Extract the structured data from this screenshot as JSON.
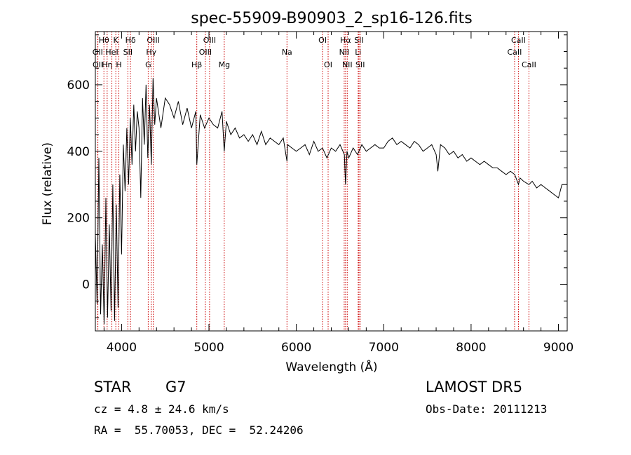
{
  "chart_data": {
    "type": "line",
    "title": "spec-55909-B90903_2_sp16-126.fits",
    "xlabel": "Wavelength (Å)",
    "ylabel": "Flux (relative)",
    "xlim": [
      3700,
      9100
    ],
    "ylim": [
      -140,
      760
    ],
    "x_ticks": [
      4000,
      5000,
      6000,
      7000,
      8000,
      9000
    ],
    "y_ticks": [
      0,
      200,
      400,
      600
    ],
    "grid": false,
    "line_color": "#000000",
    "marker_color": "#cc0000",
    "series": [
      {
        "x": [
          3700,
          3720,
          3740,
          3760,
          3780,
          3800,
          3820,
          3840,
          3860,
          3880,
          3900,
          3920,
          3940,
          3960,
          3980,
          4000,
          4020,
          4040,
          4060,
          4080,
          4100,
          4120,
          4140,
          4160,
          4180,
          4200,
          4220,
          4240,
          4260,
          4280,
          4300,
          4320,
          4340,
          4360,
          4380,
          4400,
          4450,
          4500,
          4550,
          4600,
          4650,
          4700,
          4750,
          4800,
          4850,
          4861,
          4900,
          4950,
          5000,
          5050,
          5100,
          5150,
          5175,
          5200,
          5250,
          5300,
          5350,
          5400,
          5450,
          5500,
          5550,
          5600,
          5650,
          5700,
          5750,
          5800,
          5850,
          5893,
          5900,
          5950,
          6000,
          6050,
          6100,
          6150,
          6200,
          6250,
          6300,
          6350,
          6400,
          6450,
          6500,
          6550,
          6563,
          6580,
          6600,
          6650,
          6700,
          6750,
          6800,
          6850,
          6900,
          6950,
          7000,
          7050,
          7100,
          7150,
          7200,
          7250,
          7300,
          7350,
          7400,
          7450,
          7500,
          7550,
          7600,
          7620,
          7650,
          7700,
          7750,
          7800,
          7850,
          7900,
          7950,
          8000,
          8050,
          8100,
          8150,
          8200,
          8250,
          8300,
          8350,
          8400,
          8450,
          8500,
          8542,
          8560,
          8600,
          8662,
          8700,
          8750,
          8800,
          8850,
          8900,
          8950,
          9000,
          9020,
          9040,
          9060
        ],
        "y": [
          150,
          -60,
          380,
          -90,
          120,
          -120,
          260,
          -100,
          180,
          -80,
          300,
          -110,
          240,
          -70,
          330,
          90,
          420,
          280,
          470,
          300,
          500,
          360,
          540,
          400,
          520,
          470,
          260,
          560,
          420,
          600,
          380,
          540,
          360,
          620,
          480,
          560,
          470,
          560,
          540,
          500,
          550,
          480,
          530,
          470,
          520,
          360,
          510,
          470,
          500,
          480,
          470,
          520,
          400,
          490,
          450,
          470,
          440,
          450,
          430,
          450,
          420,
          460,
          420,
          440,
          430,
          420,
          440,
          370,
          420,
          410,
          400,
          410,
          420,
          390,
          430,
          400,
          410,
          380,
          410,
          400,
          420,
          390,
          300,
          400,
          380,
          410,
          390,
          420,
          400,
          410,
          420,
          410,
          410,
          430,
          440,
          420,
          430,
          420,
          410,
          430,
          420,
          400,
          410,
          420,
          390,
          340,
          420,
          410,
          390,
          400,
          380,
          390,
          370,
          380,
          370,
          360,
          370,
          360,
          350,
          350,
          340,
          330,
          340,
          330,
          300,
          320,
          310,
          300,
          310,
          290,
          300,
          290,
          280,
          270,
          260,
          280,
          300,
          300
        ]
      }
    ],
    "lines": [
      {
        "label": "Hθ",
        "x": 3798,
        "row": 0
      },
      {
        "label": "OII",
        "x": 3727,
        "row": 1
      },
      {
        "label": "OII",
        "x": 3729,
        "row": 2
      },
      {
        "label": "Hη",
        "x": 3835,
        "row": 2
      },
      {
        "label": "K",
        "x": 3934,
        "row": 0
      },
      {
        "label": "HeI",
        "x": 3889,
        "row": 1
      },
      {
        "label": "H",
        "x": 3969,
        "row": 2
      },
      {
        "label": "Hδ",
        "x": 4102,
        "row": 0
      },
      {
        "label": "SII",
        "x": 4072,
        "row": 1
      },
      {
        "label": "OIII",
        "x": 4363,
        "row": 0
      },
      {
        "label": "Hγ",
        "x": 4340,
        "row": 1
      },
      {
        "label": "G",
        "x": 4305,
        "row": 2
      },
      {
        "label": "Hβ",
        "x": 4861,
        "row": 2
      },
      {
        "label": "OIII",
        "x": 5007,
        "row": 0
      },
      {
        "label": "OIII",
        "x": 4959,
        "row": 1
      },
      {
        "label": "Mg",
        "x": 5175,
        "row": 2
      },
      {
        "label": "Na",
        "x": 5893,
        "row": 1
      },
      {
        "label": "OI",
        "x": 6300,
        "row": 0
      },
      {
        "label": "OI",
        "x": 6364,
        "row": 2
      },
      {
        "label": "Hα",
        "x": 6563,
        "row": 0
      },
      {
        "label": "NII",
        "x": 6548,
        "row": 1
      },
      {
        "label": "NII",
        "x": 6583,
        "row": 2
      },
      {
        "label": "SII",
        "x": 6717,
        "row": 0
      },
      {
        "label": "Li",
        "x": 6708,
        "row": 1
      },
      {
        "label": "SII",
        "x": 6731,
        "row": 2
      },
      {
        "label": "CaII",
        "x": 8542,
        "row": 0
      },
      {
        "label": "CaII",
        "x": 8498,
        "row": 1
      },
      {
        "label": "CaII",
        "x": 8662,
        "row": 2
      }
    ]
  },
  "info": {
    "class_label": "STAR",
    "subclass_label": "G7",
    "survey_label": "LAMOST DR5",
    "cz_text": "cz = 4.8 ± 24.6 km/s",
    "obs_date_text": "Obs-Date: 20111213",
    "radec_text": "RA =  55.70053, DEC =  52.24206"
  }
}
